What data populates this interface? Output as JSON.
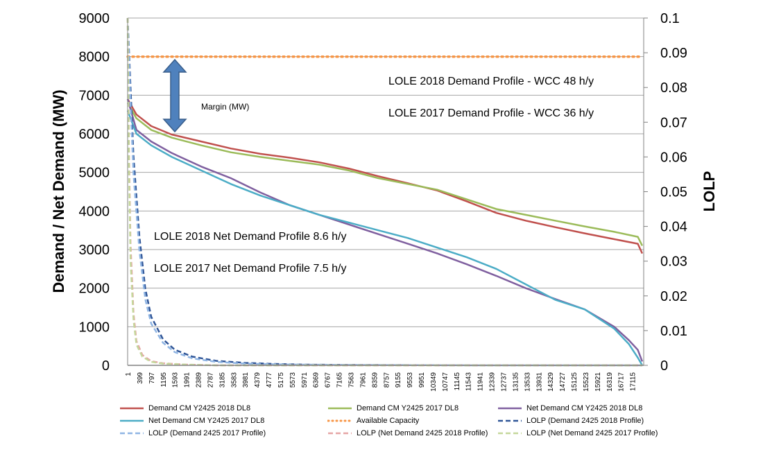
{
  "chart_data": {
    "type": "line",
    "title": "",
    "ylabel": "Demand / Net Demand (MW)",
    "y2label": "LOLP",
    "xlabel": "",
    "ylim": [
      0,
      9000
    ],
    "y2lim": [
      0,
      0.1
    ],
    "xlim": [
      1,
      17500
    ],
    "yticks": [
      "0",
      "1000",
      "2000",
      "3000",
      "4000",
      "5000",
      "6000",
      "7000",
      "8000",
      "9000"
    ],
    "y2ticks": [
      "0",
      "0.01",
      "0.02",
      "0.03",
      "0.04",
      "0.05",
      "0.06",
      "0.07",
      "0.08",
      "0.09",
      "0.1"
    ],
    "xticks": [
      "1",
      "399",
      "797",
      "1195",
      "1593",
      "1991",
      "2389",
      "2787",
      "3185",
      "3583",
      "3981",
      "4379",
      "4777",
      "5175",
      "5573",
      "5971",
      "6369",
      "6767",
      "7165",
      "7563",
      "7961",
      "8359",
      "8757",
      "9155",
      "9553",
      "9951",
      "10349",
      "10747",
      "11145",
      "11543",
      "11941",
      "12339",
      "12737",
      "13135",
      "13533",
      "13931",
      "14329",
      "14727",
      "15125",
      "15523",
      "15921",
      "16319",
      "16717",
      "17115"
    ],
    "grid": true,
    "legend_position": "bottom",
    "series": [
      {
        "name": "Demand CM Y2425 2018 DL8",
        "axis": "left",
        "color": "#c0504d",
        "style": "solid",
        "x": [
          1,
          300,
          800,
          1500,
          2500,
          3500,
          4500,
          5500,
          6500,
          7500,
          8500,
          9500,
          10500,
          11500,
          12500,
          13500,
          14500,
          15500,
          16500,
          17300,
          17450
        ],
        "y": [
          6900,
          6500,
          6200,
          5980,
          5800,
          5620,
          5480,
          5380,
          5260,
          5100,
          4900,
          4720,
          4530,
          4250,
          3950,
          3750,
          3580,
          3420,
          3270,
          3150,
          2900
        ]
      },
      {
        "name": "Demand CM Y2425 2017 DL8",
        "axis": "left",
        "color": "#9bbb59",
        "style": "solid",
        "x": [
          1,
          300,
          800,
          1500,
          2500,
          3500,
          4500,
          5500,
          6500,
          7500,
          8500,
          9500,
          10500,
          11500,
          12500,
          13500,
          14500,
          15500,
          16500,
          17300,
          17450
        ],
        "y": [
          6800,
          6400,
          6100,
          5900,
          5700,
          5520,
          5400,
          5300,
          5200,
          5050,
          4850,
          4700,
          4550,
          4300,
          4050,
          3900,
          3750,
          3600,
          3460,
          3330,
          3100
        ]
      },
      {
        "name": "Net Demand CM Y2425 2018 DL8",
        "axis": "left",
        "color": "#7f5f9f",
        "style": "solid",
        "x": [
          1,
          300,
          800,
          1500,
          2500,
          3500,
          4500,
          5500,
          6500,
          7500,
          8500,
          9500,
          10500,
          11500,
          12500,
          13500,
          14500,
          15500,
          16500,
          17000,
          17300,
          17450
        ],
        "y": [
          6900,
          6100,
          5800,
          5500,
          5150,
          4850,
          4480,
          4150,
          3900,
          3650,
          3400,
          3150,
          2900,
          2620,
          2320,
          2000,
          1720,
          1450,
          1000,
          650,
          400,
          100
        ]
      },
      {
        "name": "Net Demand CM Y2425 2017 DL8",
        "axis": "left",
        "color": "#4bacc6",
        "style": "solid",
        "x": [
          1,
          300,
          800,
          1500,
          2500,
          3500,
          4500,
          5500,
          6500,
          7500,
          8500,
          9500,
          10500,
          11500,
          12500,
          13500,
          14500,
          15500,
          16500,
          17000,
          17300,
          17450
        ],
        "y": [
          6600,
          6000,
          5700,
          5400,
          5050,
          4700,
          4400,
          4150,
          3900,
          3700,
          3500,
          3300,
          3050,
          2800,
          2500,
          2100,
          1700,
          1450,
          950,
          550,
          200,
          0
        ]
      },
      {
        "name": "Available Capacity",
        "axis": "left",
        "color": "#f79646",
        "style": "dotted",
        "x": [
          1,
          17450
        ],
        "y": [
          8000,
          8000
        ]
      },
      {
        "name": "LOLP (Demand 2425 2018 Profile)",
        "axis": "right",
        "color": "#2f5597",
        "style": "dashed",
        "x": [
          1,
          100,
          200,
          400,
          600,
          800,
          1200,
          1600,
          2200,
          3000,
          4000,
          5000,
          6000,
          8000,
          12000,
          17450
        ],
        "y": [
          0.1,
          0.08,
          0.06,
          0.037,
          0.022,
          0.014,
          0.0075,
          0.0045,
          0.0025,
          0.0013,
          0.0007,
          0.0004,
          0.0002,
          0.0001,
          0,
          0
        ]
      },
      {
        "name": "LOLP (Demand 2425 2017 Profile)",
        "axis": "right",
        "color": "#8eb4e3",
        "style": "dashed",
        "x": [
          1,
          100,
          200,
          400,
          600,
          800,
          1200,
          1600,
          2200,
          3000,
          4000,
          5000,
          6000,
          8000,
          12000,
          17450
        ],
        "y": [
          0.1,
          0.075,
          0.055,
          0.033,
          0.019,
          0.012,
          0.0065,
          0.0038,
          0.002,
          0.001,
          0.0005,
          0.0003,
          0.0002,
          0.0001,
          0,
          0
        ]
      },
      {
        "name": "LOLP (Net Demand 2425 2018 Profile)",
        "axis": "right",
        "color": "#e6a4a4",
        "style": "dashed",
        "x": [
          1,
          50,
          100,
          200,
          300,
          500,
          800,
          1200,
          2000,
          3000,
          17450
        ],
        "y": [
          0.1,
          0.06,
          0.035,
          0.015,
          0.007,
          0.003,
          0.0012,
          0.0006,
          0.0002,
          0,
          0
        ]
      },
      {
        "name": "LOLP (Net Demand 2425 2017 Profile)",
        "axis": "right",
        "color": "#c4d79b",
        "style": "dashed",
        "x": [
          1,
          50,
          100,
          200,
          300,
          500,
          800,
          1200,
          2000,
          3000,
          17450
        ],
        "y": [
          0.1,
          0.055,
          0.03,
          0.013,
          0.006,
          0.0025,
          0.001,
          0.0005,
          0.0002,
          0,
          0
        ]
      }
    ],
    "annotations": [
      {
        "text": "LOLE 2018 Demand Profile - WCC 48 h/y"
      },
      {
        "text": "LOLE 2017 Demand Profile - WCC 36 h/y"
      },
      {
        "text": "Margin (MW)"
      },
      {
        "text": "LOLE 2018 Net Demand Profile 8.6 h/y"
      },
      {
        "text": "LOLE 2017 Net Demand Profile 7.5 h/y"
      }
    ]
  }
}
